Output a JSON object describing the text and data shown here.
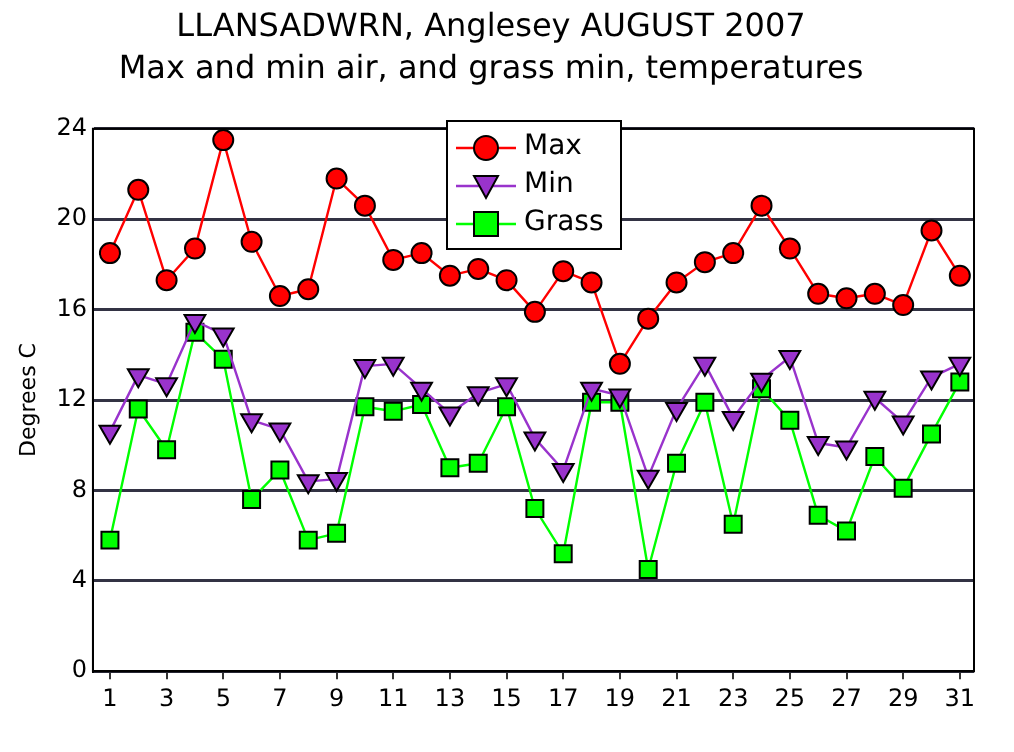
{
  "chart_data": {
    "type": "line",
    "title": "LLANSADWRN, Anglesey AUGUST 2007",
    "subtitle": "Max and min air, and grass min, temperatures",
    "ylabel": "Degrees C",
    "x": [
      1,
      2,
      3,
      4,
      5,
      6,
      7,
      8,
      9,
      10,
      11,
      12,
      13,
      14,
      15,
      16,
      17,
      18,
      19,
      20,
      21,
      22,
      23,
      24,
      25,
      26,
      27,
      28,
      29,
      30,
      31
    ],
    "xlim": [
      0.4,
      31.5
    ],
    "xticks": [
      1,
      3,
      5,
      7,
      9,
      11,
      13,
      15,
      17,
      19,
      21,
      23,
      25,
      27,
      29,
      31
    ],
    "ylim": [
      0,
      24
    ],
    "yticks": [
      0,
      4,
      8,
      12,
      16,
      20,
      24
    ],
    "grid": "y",
    "legend": "top",
    "series": [
      {
        "name": "Max",
        "color": "#ff0000",
        "marker": "circle",
        "values": [
          18.5,
          21.3,
          17.3,
          18.7,
          23.5,
          19,
          16.6,
          16.9,
          21.8,
          20.6,
          18.2,
          18.5,
          17.5,
          17.8,
          17.3,
          15.9,
          17.7,
          17.2,
          13.6,
          15.6,
          17.2,
          18.1,
          18.5,
          20.6,
          18.7,
          16.7,
          16.5,
          16.7,
          16.2,
          19.5,
          17.5
        ]
      },
      {
        "name": "Min",
        "color": "#9933cc",
        "marker": "triangle",
        "values": [
          10.6,
          13.1,
          12.7,
          15.5,
          14.9,
          11.1,
          10.7,
          8.4,
          8.5,
          13.5,
          13.6,
          12.5,
          11.4,
          12.3,
          12.7,
          10.3,
          8.9,
          12.5,
          12.2,
          8.6,
          11.6,
          13.6,
          11.2,
          12.9,
          13.9,
          10.1,
          9.9,
          12.1,
          11,
          13,
          13.6
        ]
      },
      {
        "name": "Grass",
        "color": "#00ff00",
        "marker": "square",
        "values": [
          5.8,
          11.6,
          9.8,
          15,
          13.8,
          7.6,
          8.9,
          5.8,
          6.1,
          11.7,
          11.5,
          11.8,
          9,
          9.2,
          11.7,
          7.2,
          5.2,
          11.9,
          11.9,
          4.5,
          9.2,
          11.9,
          6.5,
          12.5,
          11.1,
          6.9,
          6.2,
          9.5,
          8.1,
          10.5,
          12.8
        ]
      }
    ]
  }
}
